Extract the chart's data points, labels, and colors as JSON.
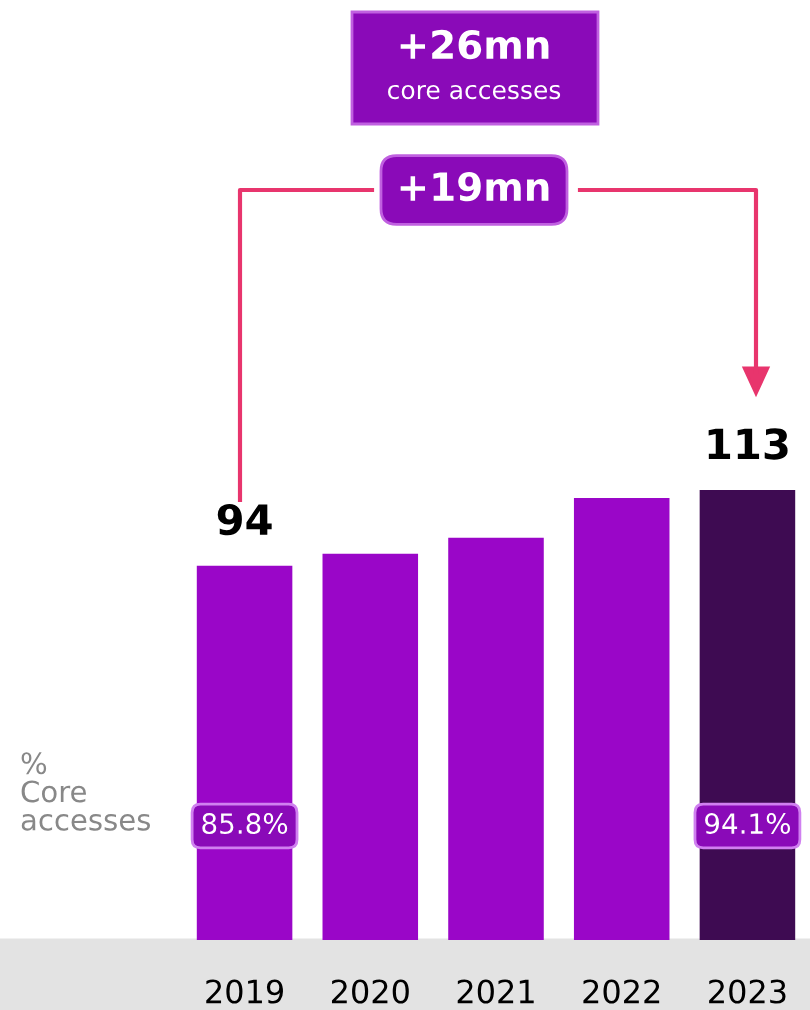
{
  "chart_data": {
    "type": "bar",
    "categories": [
      "2019",
      "2020",
      "2021",
      "2022",
      "2023"
    ],
    "values": [
      94,
      97,
      101,
      111,
      113
    ],
    "value_labels": [
      "94",
      null,
      null,
      null,
      "113"
    ],
    "colors": [
      "#9a06c8",
      "#9a06c8",
      "#9a06c8",
      "#9a06c8",
      "#3e0b52"
    ],
    "tick_labels": "x",
    "grid": false,
    "legend": false,
    "annotations": [
      "+26mn",
      "core accesses",
      "+19mn",
      "%\nCore\naccesses",
      "85.8%",
      "94.1%"
    ]
  }
}
